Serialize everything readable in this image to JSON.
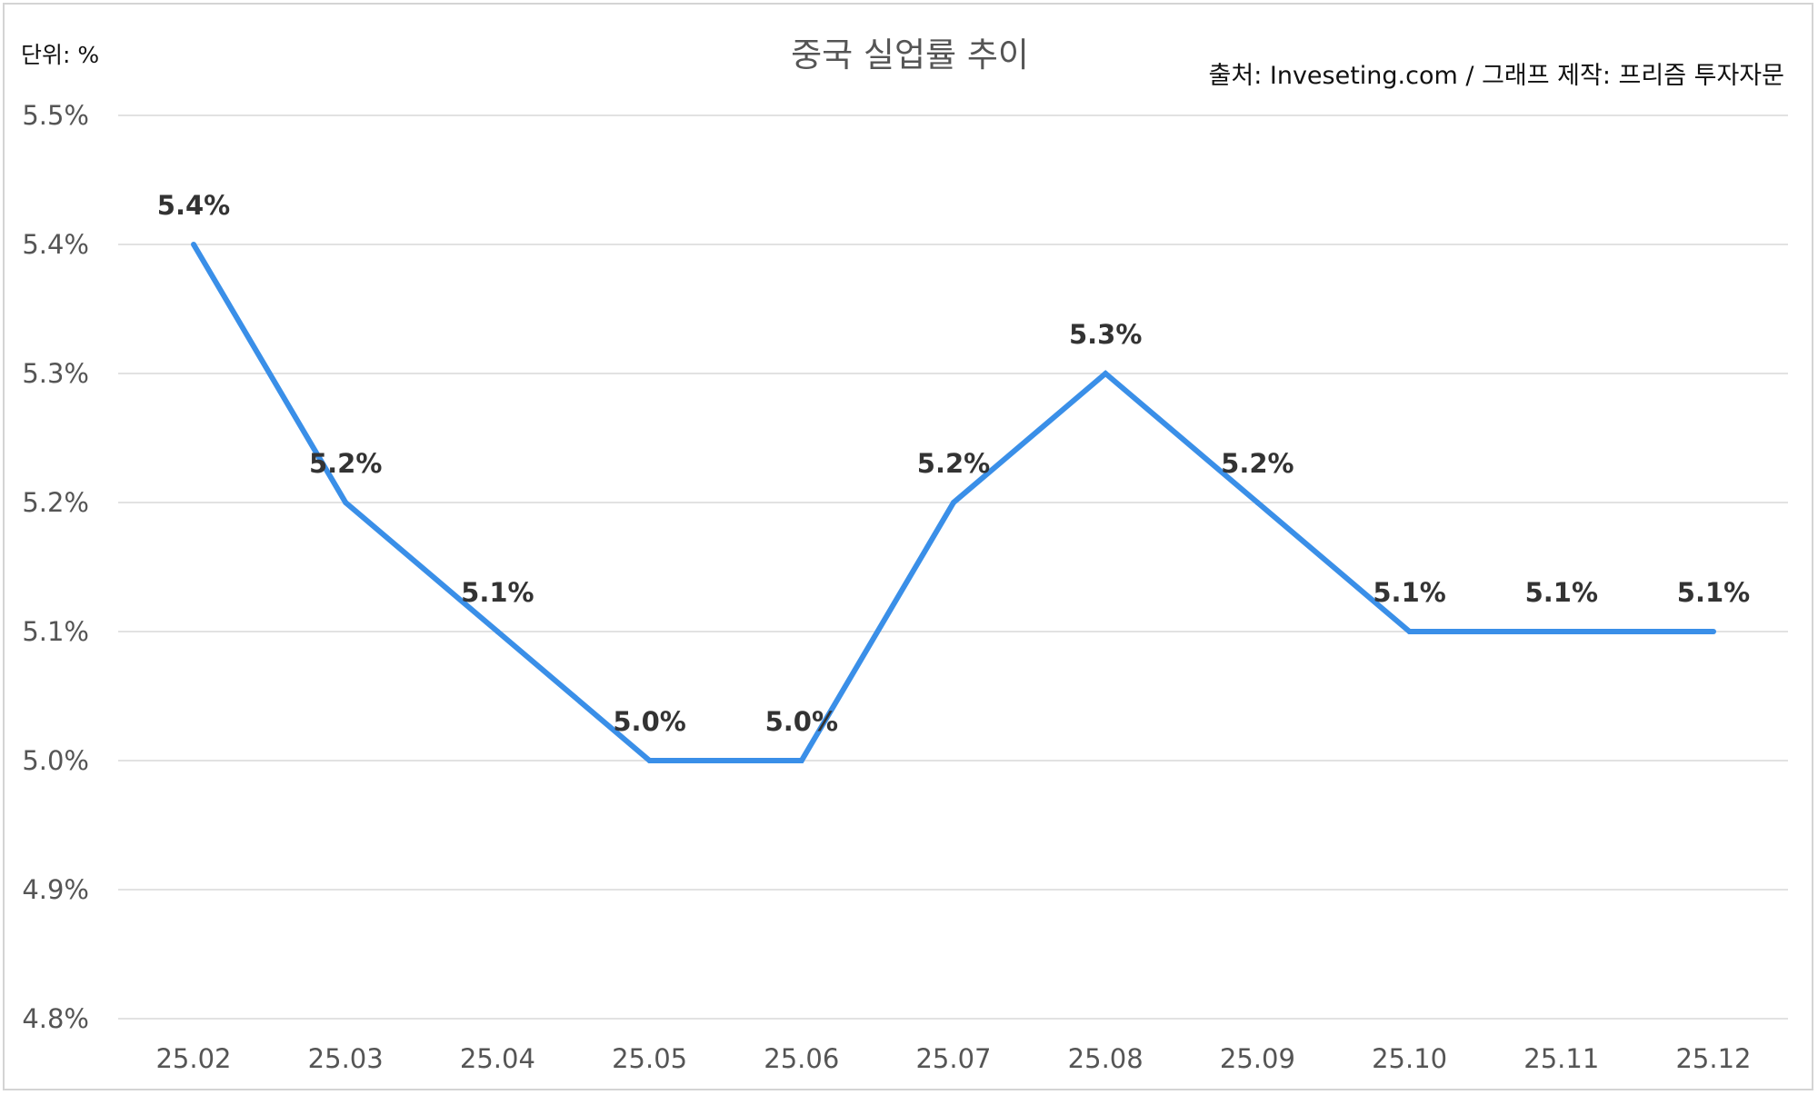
{
  "header": {
    "unit": "단위: %",
    "source": "출처: Inveseting.com / 그래프 제작: 프리즘 투자자문"
  },
  "chart_data": {
    "type": "line",
    "title": "중국 실업률 추이",
    "xlabel": "",
    "ylabel": "",
    "categories": [
      "25.02",
      "25.03",
      "25.04",
      "25.05",
      "25.06",
      "25.07",
      "25.08",
      "25.09",
      "25.10",
      "25.11",
      "25.12"
    ],
    "series": [
      {
        "values": [
          5.4,
          5.2,
          5.1,
          5.0,
          5.0,
          5.2,
          5.3,
          5.2,
          5.1,
          5.1,
          5.1
        ],
        "labels": [
          "5.4%",
          "5.2%",
          "5.1%",
          "5.0%",
          "5.0%",
          "5.2%",
          "5.3%",
          "5.2%",
          "5.1%",
          "5.1%",
          "5.1%"
        ],
        "color": "#3a8fe8"
      }
    ],
    "ylim": [
      4.8,
      5.5
    ],
    "y_ticks": [
      5.5,
      5.4,
      5.3,
      5.2,
      5.1,
      5.0,
      4.9,
      4.8
    ],
    "y_tick_labels": [
      "5.5%",
      "5.4%",
      "5.3%",
      "5.2%",
      "5.1%",
      "5.0%",
      "4.9%",
      "4.8%"
    ],
    "grid": true,
    "legend": "none",
    "data_labels": "above"
  }
}
